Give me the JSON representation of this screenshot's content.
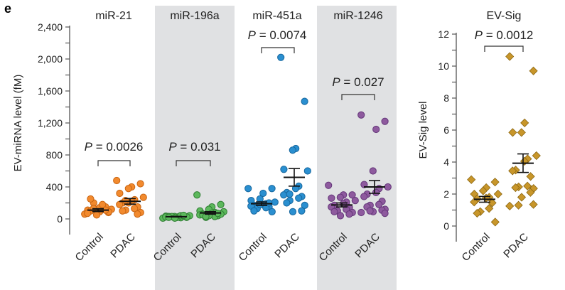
{
  "panel_label": "e",
  "chart_data": [
    {
      "type": "scatter",
      "ylabel": "EV-miRNA level (fM)",
      "ylim": [
        0,
        2400
      ],
      "yticks": [
        "0",
        "400",
        "800",
        "1,200",
        "1,600",
        "2,000",
        "2,400"
      ],
      "ytick_values": [
        0,
        400,
        800,
        1200,
        1600,
        2000,
        2400
      ],
      "categories": [
        "Control",
        "PDAC"
      ],
      "shaded_panels": [
        "miR-196a",
        "miR-1246"
      ],
      "panels": [
        {
          "title": "miR-21",
          "p_value": "= 0.0026",
          "color": "#f28a2e",
          "stroke": "#c96512",
          "groups": [
            {
              "name": "Control",
              "mean": 110,
              "sem": 18,
              "values": [
                60,
                80,
                90,
                100,
                110,
                120,
                130,
                140,
                100,
                70,
                150,
                180,
                200,
                250,
                90,
                110,
                50,
                130
              ]
            },
            {
              "name": "PDAC",
              "mean": 220,
              "sem": 35,
              "values": [
                480,
                440,
                400,
                380,
                320,
                270,
                240,
                220,
                200,
                180,
                150,
                130,
                110,
                100,
                80,
                60,
                200,
                230
              ]
            }
          ]
        },
        {
          "title": "miR-196a",
          "p_value": "= 0.031",
          "color": "#5cb85c",
          "stroke": "#2e7d32",
          "groups": [
            {
              "name": "Control",
              "mean": 28,
              "sem": 4,
              "values": [
                10,
                20,
                25,
                30,
                35,
                40,
                15,
                20,
                30,
                25,
                35,
                40,
                30,
                20,
                25,
                45,
                10
              ]
            },
            {
              "name": "PDAC",
              "mean": 75,
              "sem": 16,
              "values": [
                300,
                180,
                150,
                120,
                100,
                90,
                80,
                70,
                60,
                50,
                40,
                30,
                20,
                50,
                60,
                70,
                40,
                30
              ]
            }
          ]
        },
        {
          "title": "miR-451a",
          "p_value": "= 0.0074",
          "color": "#2a8fd0",
          "stroke": "#17679e",
          "groups": [
            {
              "name": "Control",
              "mean": 190,
              "sem": 22,
              "values": [
                380,
                380,
                320,
                250,
                230,
                210,
                190,
                180,
                170,
                160,
                150,
                140,
                130,
                100,
                90,
                200,
                180
              ]
            },
            {
              "name": "PDAC",
              "mean": 520,
              "sem": 110,
              "values": [
                2020,
                1470,
                880,
                860,
                620,
                600,
                410,
                380,
                330,
                300,
                280,
                260,
                230,
                200,
                170,
                100,
                90,
                310
              ]
            }
          ]
        },
        {
          "title": "miR-1246",
          "p_value": "= 0.027",
          "color": "#8e5a9e",
          "stroke": "#65377a",
          "groups": [
            {
              "name": "Control",
              "mean": 175,
              "sem": 25,
              "values": [
                420,
                300,
                300,
                270,
                260,
                230,
                210,
                190,
                170,
                150,
                140,
                120,
                100,
                90,
                80,
                60,
                40
              ]
            },
            {
              "name": "PDAC",
              "mean": 400,
              "sem": 80,
              "values": [
                1300,
                1220,
                1120,
                600,
                430,
                400,
                380,
                330,
                310,
                280,
                220,
                180,
                170,
                150,
                120,
                110,
                90,
                100,
                80,
                70
              ]
            }
          ]
        }
      ]
    },
    {
      "type": "scatter",
      "ylabel": "EV-Sig level",
      "ylim": [
        0,
        12
      ],
      "yticks": [
        "0",
        "2",
        "4",
        "6",
        "8",
        "10",
        "12"
      ],
      "ytick_values": [
        0,
        2,
        4,
        6,
        8,
        10,
        12
      ],
      "categories": [
        "Control",
        "PDAC"
      ],
      "panels": [
        {
          "title": "EV-Sig",
          "p_value": "= 0.0012",
          "color": "#c8962a",
          "stroke": "#8a6510",
          "marker": "diamond",
          "groups": [
            {
              "name": "Control",
              "mean": 1.67,
              "sem": 0.18,
              "values": [
                2.9,
                2.75,
                2.4,
                2.2,
                2.0,
                2.0,
                1.8,
                1.75,
                1.7,
                1.5,
                1.45,
                1.1,
                0.9,
                0.8,
                0.25
              ]
            },
            {
              "name": "PDAC",
              "mean": 3.93,
              "sem": 0.58,
              "values": [
                10.6,
                9.7,
                6.45,
                5.85,
                5.85,
                4.4,
                4.2,
                4.05,
                3.5,
                3.45,
                3.1,
                2.5,
                2.45,
                2.4,
                2.35,
                2.1,
                1.8,
                1.3,
                1.25,
                1.35
              ]
            }
          ]
        }
      ]
    }
  ]
}
